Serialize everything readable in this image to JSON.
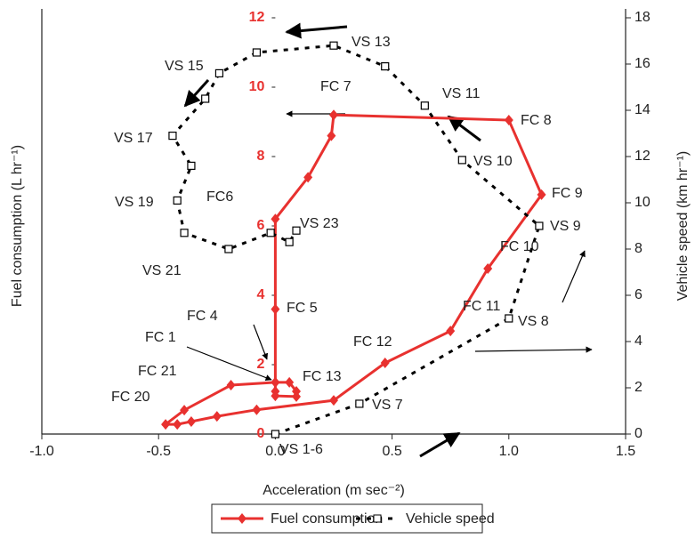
{
  "chart_data": {
    "type": "scatter-line",
    "x_label": "Acceleration (m sec⁻²)",
    "y_label": "Fuel consumption (L hr⁻¹)",
    "y2_label": "Vehicle speed (km hr⁻¹)",
    "xlim": [
      -1.0,
      1.5
    ],
    "xticks": [
      {
        "value": -1.0,
        "label": "-1.0"
      },
      {
        "value": -0.5,
        "label": "-0.5"
      },
      {
        "value": 0,
        "label": "0.0"
      },
      {
        "value": 0.5,
        "label": "0.5"
      },
      {
        "value": 1.0,
        "label": "1.0"
      },
      {
        "value": 1.5,
        "label": "1.5"
      }
    ],
    "ylim": [
      0,
      12
    ],
    "yticks": [
      0,
      2,
      4,
      6,
      8,
      10,
      12
    ],
    "y2lim": [
      0,
      18
    ],
    "y2ticks": [
      0,
      2,
      4,
      6,
      8,
      10,
      12,
      14,
      16,
      18
    ],
    "ytick_color": "#e8312f",
    "legend": "bottom",
    "series": [
      {
        "name": "Fuel consumption",
        "color": "#e8312f",
        "marker": "diamond",
        "dashed": false,
        "axis": "y",
        "x": [
          0,
          0,
          0.06,
          0.09,
          0.09,
          0,
          0,
          0,
          0.14,
          0.24,
          0.25,
          1.0,
          1.14,
          0.91,
          0.75,
          0.47,
          0.25,
          -0.08,
          -0.25,
          -0.36,
          -0.42,
          -0.47,
          -0.39,
          -0.19,
          0
        ],
        "values": [
          1.23,
          1.49,
          1.49,
          1.23,
          1.08,
          1.1,
          3.6,
          6.2,
          7.4,
          8.6,
          9.2,
          9.05,
          6.9,
          4.77,
          2.97,
          2.05,
          0.97,
          0.7,
          0.51,
          0.36,
          0.28,
          0.28,
          0.69,
          1.41,
          1.49
        ]
      },
      {
        "name": "Vehicle speed",
        "color": "#000000",
        "marker": "square",
        "dashed": true,
        "axis": "y2",
        "x": [
          0,
          0.36,
          1.0,
          1.13,
          0.8,
          0.64,
          0.47,
          0.25,
          -0.08,
          -0.24,
          -0.3,
          -0.44,
          -0.36,
          -0.42,
          -0.39,
          -0.2,
          -0.02,
          0.06,
          0.09
        ],
        "values": [
          0,
          1.31,
          5.0,
          9.0,
          11.85,
          14.2,
          15.9,
          16.8,
          16.5,
          15.6,
          14.5,
          12.9,
          11.6,
          10.1,
          8.7,
          8.0,
          8.7,
          8.3,
          8.8
        ]
      }
    ],
    "annotations": [
      "FC 7",
      "FC 8",
      "FC 9",
      "FC 10",
      "FC 11",
      "FC 12",
      "FC 13",
      "FC 5",
      "FC 4",
      "FC 1",
      "FC 21",
      "FC 20",
      "FC6",
      "VS 13",
      "VS 15",
      "VS 11",
      "VS 17",
      "VS 10",
      "VS 19",
      "VS 9",
      "VS 21",
      "VS 23",
      "VS 8",
      "VS 7",
      "VS 1-6"
    ]
  }
}
